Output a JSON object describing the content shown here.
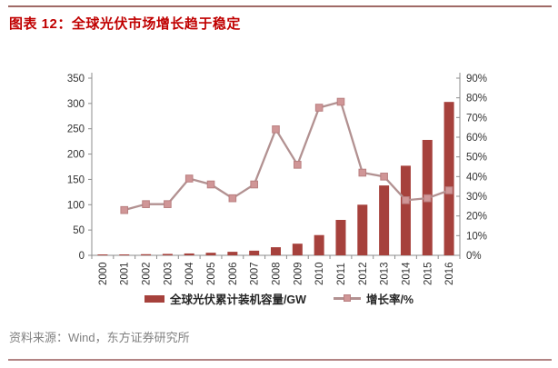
{
  "header": {
    "title": "图表 12：全球光伏市场增长趋于稳定"
  },
  "footer": {
    "source": "资料来源：Wind，东方证券研究所"
  },
  "theme": {
    "title_color": "#C00000",
    "rule_top_color": "#A06A66",
    "rule_bottom_color": "#B28484",
    "source_color": "#808080",
    "legend_text_color": "#262626"
  },
  "chart_data": {
    "type": "combo",
    "title": "",
    "xlabel": "",
    "ylabel_left": "全球光伏累计装机容量/GW",
    "ylabel_right": "增长率/%",
    "grid": false,
    "legend_position": "bottom",
    "categories": [
      "2000",
      "2001",
      "2002",
      "2003",
      "2004",
      "2005",
      "2006",
      "2007",
      "2008",
      "2009",
      "2010",
      "2011",
      "2012",
      "2013",
      "2014",
      "2015",
      "2016"
    ],
    "series": [
      {
        "name": "全球光伏累计装机容量/GW",
        "type": "bar",
        "axis": "left",
        "values": [
          1.3,
          1.7,
          2.2,
          2.8,
          3.7,
          5.1,
          7,
          9.2,
          16,
          23,
          40,
          70,
          100,
          138,
          177,
          228,
          303
        ]
      },
      {
        "name": "增长率/%",
        "type": "line",
        "axis": "right",
        "values": [
          null,
          23,
          26,
          26,
          39,
          36,
          29,
          36,
          64,
          46,
          75,
          78,
          42,
          40,
          28,
          29,
          33
        ]
      }
    ],
    "left_axis": {
      "min": 0,
      "max": 350,
      "step": 50,
      "tick_labels": [
        "0",
        "50",
        "100",
        "150",
        "200",
        "250",
        "300",
        "350"
      ]
    },
    "right_axis": {
      "min": 0,
      "max": 90,
      "step": 10,
      "suffix": "%",
      "tick_labels": [
        "0%",
        "10%",
        "20%",
        "30%",
        "40%",
        "50%",
        "60%",
        "70%",
        "80%",
        "90%"
      ]
    },
    "colors": {
      "bar": "#A6413C",
      "line": "#B29191",
      "marker_fill": "#D09697",
      "marker_border": "#B97F80",
      "axis": "#8C8C8C",
      "tick_label": "#333333"
    }
  }
}
